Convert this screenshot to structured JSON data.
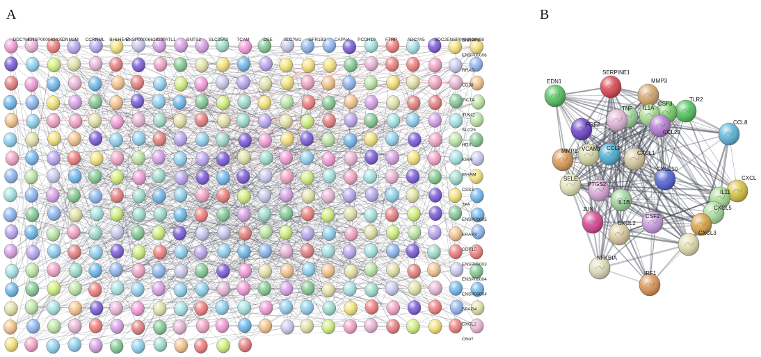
{
  "panels": {
    "a": {
      "letter": "A"
    },
    "b": {
      "letter": "B"
    }
  },
  "panel_a": {
    "cols": 23,
    "rows": 17,
    "node_colors": [
      "#7a5ad8",
      "#8fd1f0",
      "#bde6a6",
      "#f2a3c4",
      "#d7a0e6",
      "#f5e27a",
      "#9fdccc",
      "#e57f7f",
      "#c9c9ee",
      "#a6e3e3",
      "#f4c38c",
      "#84c994",
      "#e9b5d5",
      "#f07d7d",
      "#6fb8ec",
      "#d1f07c",
      "#b9a6f0",
      "#e2e2a8",
      "#8db5f0",
      "#f29bd7"
    ],
    "top_labels": [
      "DDC?M",
      "ENSP000062435",
      "DNM2M",
      "CCRNML",
      "BHLHE4A",
      "ENSP0000662823",
      "PATL1",
      "BNTS2",
      "SLC25A3",
      "TCAM",
      "DSE",
      "SLC?M1",
      "GFR1B3",
      "CAPN4",
      "PCDH10",
      "FTRP",
      "ADC?A5",
      "SDC2",
      "ENSP0000638688"
    ],
    "right_labels": [
      "SNRPF1",
      "ENSP0000647023",
      "RRAD",
      "CD38",
      "TICT4",
      "IRAK2",
      "SLC25",
      "HDX",
      "KIRR",
      "WHAM",
      "CSS3",
      "TFA",
      "ENSP0000537016",
      "ERAP2",
      "GDF15",
      "ENSP0000398914",
      "ENSP0000400888",
      "ENSP0000466681",
      "SPAG4",
      "CXCL2",
      "C6orf"
    ]
  },
  "panel_b": {
    "nodes": [
      {
        "id": "EDN1",
        "label": "EDN1",
        "color": "#4fbf5a"
      },
      {
        "id": "SERPINE1",
        "label": "SERPINE1",
        "color": "#d9424f"
      },
      {
        "id": "MMP3",
        "label": "MMP3",
        "color": "#d6a56a"
      },
      {
        "id": "TLR2",
        "label": "TLR2",
        "color": "#4fc25a"
      },
      {
        "id": "CSF3",
        "label": "CSF3",
        "color": "#77cc6a"
      },
      {
        "id": "IL1A",
        "label": "IL1A",
        "color": "#a6d992"
      },
      {
        "id": "TNF",
        "label": "TNF",
        "color": "#9bd69a"
      },
      {
        "id": "CCL8",
        "label": "CCL8",
        "color": "#5ab3d9"
      },
      {
        "id": "FGF2",
        "label": "FGF2",
        "color": "#6a3fc9"
      },
      {
        "id": "CCL20",
        "label": "CCL20",
        "color": "#b478d6"
      },
      {
        "id": "IL6",
        "label": "",
        "color": "#e1b4d9"
      },
      {
        "id": "MMP1",
        "label": "MMP1",
        "color": "#d99a52"
      },
      {
        "id": "VCAM1",
        "label": "VCAM1",
        "color": "#d6d6a6"
      },
      {
        "id": "CCL2",
        "label": "CCL2",
        "color": "#4aaed2"
      },
      {
        "id": "CXCL1",
        "label": "CXCL1",
        "color": "#d6c99e"
      },
      {
        "id": "CXCL10",
        "label": "CXCL10",
        "color": "#4f5fd4"
      },
      {
        "id": "CXCL8",
        "label": "CXCL",
        "color": "#d6c23f"
      },
      {
        "id": "SELE",
        "label": "SELE",
        "color": "#e4e4b8"
      },
      {
        "id": "PTGS2",
        "label": "PTGS2",
        "color": "#d9a5d6"
      },
      {
        "id": "IL1B",
        "label": "IL1B",
        "color": "#9fd69a"
      },
      {
        "id": "IL11",
        "label": "IL11",
        "color": "#a6d992"
      },
      {
        "id": "CXCL5",
        "label": "CXCL5",
        "color": "#a6dc9c"
      },
      {
        "id": "JUN",
        "label": "JUN",
        "color": "#d4448f"
      },
      {
        "id": "CSF2",
        "label": "CSF2",
        "color": "#c99ae0"
      },
      {
        "id": "CXCL2",
        "label": "CXCL2",
        "color": "#ddc99e"
      },
      {
        "id": "CXCL3",
        "label": "CXCL3",
        "color": "#d9a03f"
      },
      {
        "id": "CXCL6",
        "label": "",
        "color": "#e4dcae"
      },
      {
        "id": "NFKBIA",
        "label": "NFKBIA",
        "color": "#dedcb8"
      },
      {
        "id": "IRF1",
        "label": "IRF1",
        "color": "#d99252"
      }
    ]
  }
}
